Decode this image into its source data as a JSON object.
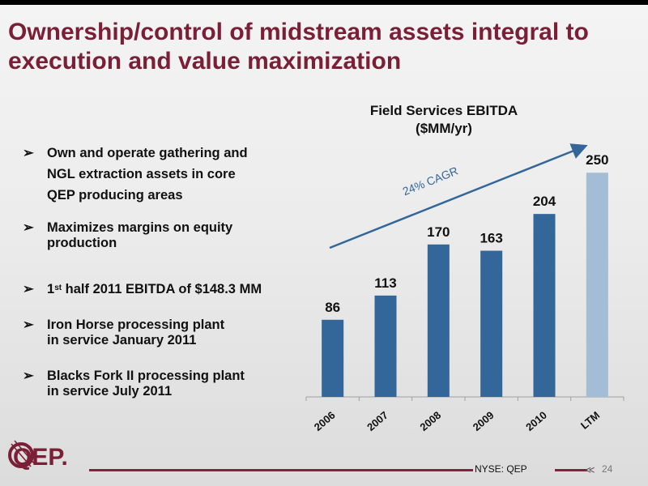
{
  "title": "Ownership/control of midstream assets integral to execution and value maximization",
  "bullets": [
    {
      "line1": "Own and operate gathering and",
      "line2": "NGL extraction assets in core",
      "line3": "QEP producing areas"
    },
    {
      "line1": "Maximizes margins on equity",
      "line2": "production"
    },
    {
      "pre": "1",
      "sup": "st",
      "post": " half 2011 EBITDA of $148.3 MM"
    },
    {
      "line1": "Iron Horse processing plant",
      "line2": "in service January 2011"
    },
    {
      "line1": "Blacks Fork II processing plant",
      "line2": "in service July 2011"
    }
  ],
  "bullet_icon": "arrowhead-bullet-icon",
  "chart_data": {
    "type": "bar",
    "title": "Field Services EBITDA",
    "subtitle": "($MM/yr)",
    "categories": [
      "2006",
      "2007",
      "2008",
      "2009",
      "2010",
      "LTM"
    ],
    "values": [
      86,
      113,
      170,
      163,
      204,
      250
    ],
    "ylim": [
      0,
      280
    ],
    "annotation": "24% CAGR",
    "colors": {
      "bar": "#336699",
      "ltm_bar": "#a4bdd6",
      "trend_arrow": "#336699"
    },
    "grid": false,
    "legend": "none"
  },
  "footer": {
    "ticker": "NYSE: QEP",
    "page_number": "24"
  },
  "logo": {
    "text": "QEP."
  },
  "colors": {
    "title": "#7a1f36",
    "accent": "#8a1f3c"
  }
}
